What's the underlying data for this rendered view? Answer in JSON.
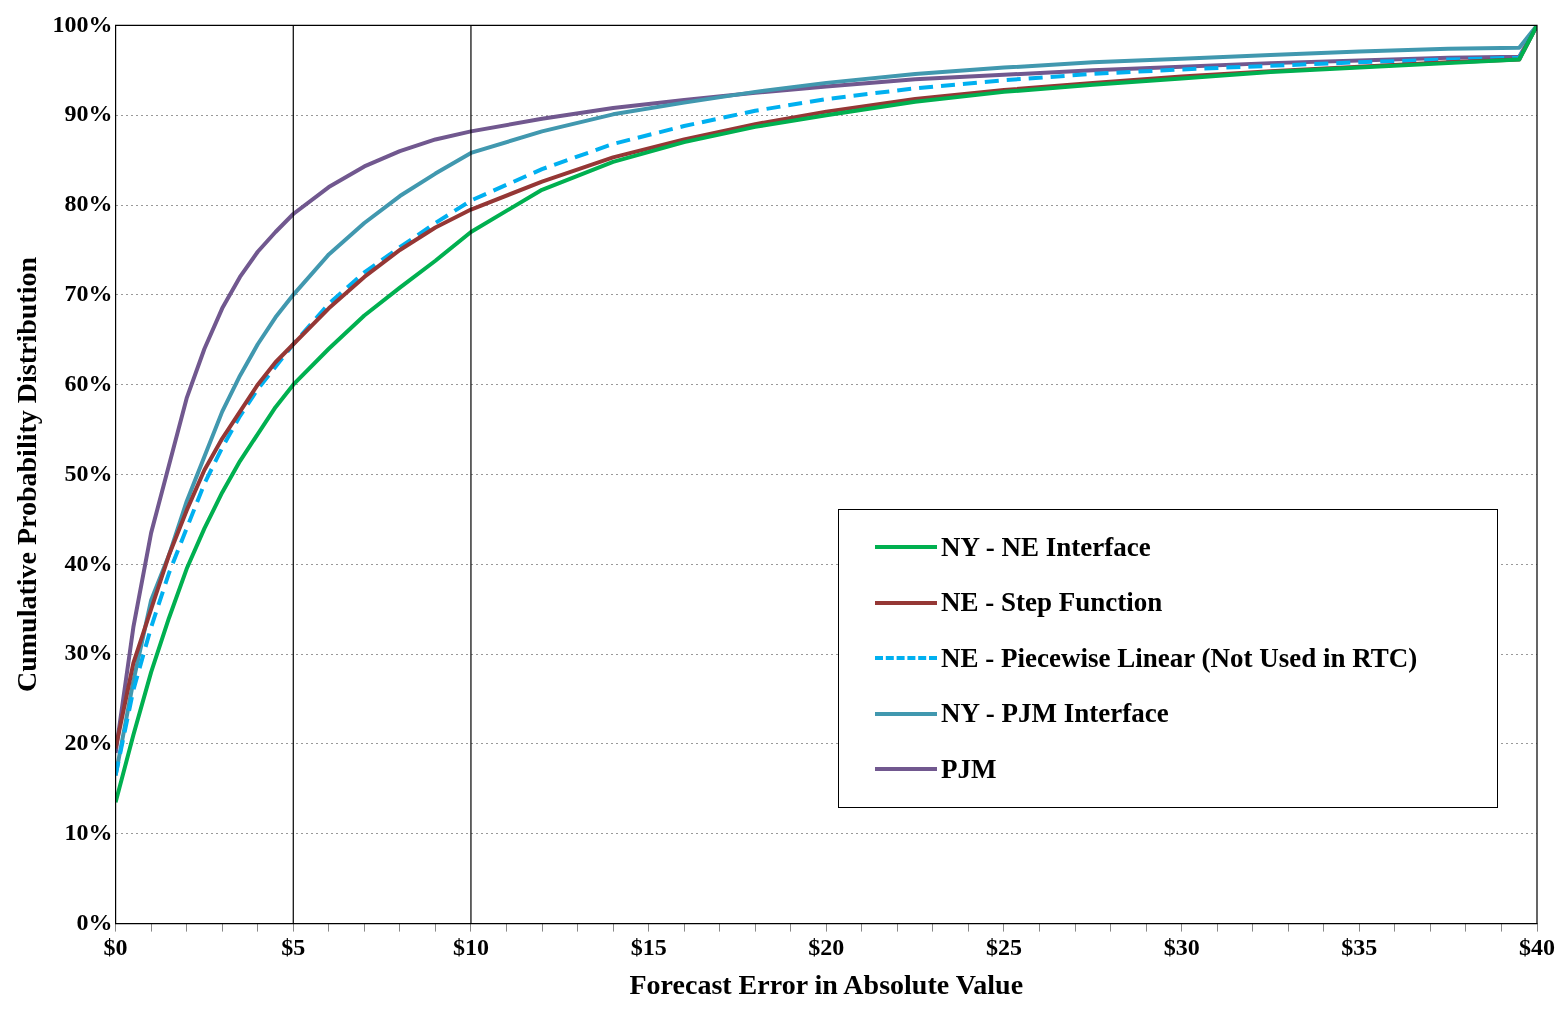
{
  "chart_data": {
    "type": "line",
    "xlabel": "Forecast Error in Absolute Value",
    "ylabel": "Cumulative Probability Distribution",
    "x": [
      0,
      0.5,
      1,
      1.5,
      2,
      2.5,
      3,
      3.5,
      4,
      4.5,
      5,
      6,
      7,
      8,
      9,
      10,
      12,
      14,
      16,
      18,
      20,
      22.5,
      25,
      27.5,
      30,
      32.5,
      35,
      37.5,
      39.5,
      40
    ],
    "series": [
      {
        "name": "NY - NE Interface",
        "color": "#00b050",
        "values": [
          13.5,
          21,
          28,
          34,
          39.5,
          44,
          48,
          51.5,
          54.5,
          57.5,
          60,
          64,
          67.7,
          70.8,
          73.8,
          77,
          81.7,
          84.8,
          87,
          88.7,
          90,
          91.5,
          92.6,
          93.4,
          94.1,
          94.8,
          95.3,
          95.8,
          96.2,
          100
        ]
      },
      {
        "name": "NE - Step Function",
        "color": "#953735",
        "values": [
          19.5,
          29,
          35,
          41,
          46,
          50.5,
          54,
          57,
          60,
          62.5,
          64.5,
          68.5,
          72,
          75,
          77.5,
          79.5,
          82.6,
          85.3,
          87.3,
          89,
          90.4,
          91.8,
          92.8,
          93.6,
          94.3,
          94.9,
          95.4,
          95.9,
          96.2,
          100
        ]
      },
      {
        "name": "NE - Piecewise Linear (Not Used in RTC)",
        "color": "#00b0f0",
        "line_style": "dashed",
        "values": [
          16.5,
          26,
          33,
          39,
          44,
          49,
          53,
          56.5,
          59.5,
          62,
          64.5,
          69,
          72.5,
          75.3,
          78,
          80.5,
          84,
          86.8,
          88.8,
          90.5,
          91.8,
          93,
          93.9,
          94.6,
          95.1,
          95.5,
          95.9,
          96.2,
          96.4,
          100
        ]
      },
      {
        "name": "NY - PJM Interface",
        "color": "#4198af",
        "values": [
          16.5,
          27,
          36,
          41,
          47,
          52,
          57,
          61,
          64.5,
          67.5,
          70,
          74.5,
          78,
          81,
          83.5,
          85.8,
          88.2,
          90.1,
          91.4,
          92.6,
          93.6,
          94.6,
          95.3,
          95.9,
          96.3,
          96.7,
          97.1,
          97.4,
          97.5,
          100
        ]
      },
      {
        "name": "PJM",
        "color": "#71588f",
        "values": [
          19,
          33,
          43.5,
          51,
          58.5,
          64,
          68.5,
          72,
          74.8,
          77,
          79,
          82,
          84.3,
          86,
          87.3,
          88.2,
          89.6,
          90.8,
          91.7,
          92.5,
          93.2,
          94,
          94.5,
          95,
          95.4,
          95.8,
          96.1,
          96.4,
          96.5,
          100
        ]
      }
    ],
    "xlim": [
      0,
      40
    ],
    "xticks": [
      {
        "value": 0,
        "label": "$0"
      },
      {
        "value": 1,
        "label": null
      },
      {
        "value": 2,
        "label": null
      },
      {
        "value": 3,
        "label": null
      },
      {
        "value": 4,
        "label": null
      },
      {
        "value": 5,
        "label": "$5"
      },
      {
        "value": 6,
        "label": null
      },
      {
        "value": 7,
        "label": null
      },
      {
        "value": 8,
        "label": null
      },
      {
        "value": 9,
        "label": null
      },
      {
        "value": 10,
        "label": "$10"
      },
      {
        "value": 11,
        "label": null
      },
      {
        "value": 12,
        "label": null
      },
      {
        "value": 13,
        "label": null
      },
      {
        "value": 14,
        "label": null
      },
      {
        "value": 15,
        "label": "$15"
      },
      {
        "value": 16,
        "label": null
      },
      {
        "value": 17,
        "label": null
      },
      {
        "value": 18,
        "label": null
      },
      {
        "value": 19,
        "label": null
      },
      {
        "value": 20,
        "label": "$20"
      },
      {
        "value": 21,
        "label": null
      },
      {
        "value": 22,
        "label": null
      },
      {
        "value": 23,
        "label": null
      },
      {
        "value": 24,
        "label": null
      },
      {
        "value": 25,
        "label": "$25"
      },
      {
        "value": 26,
        "label": null
      },
      {
        "value": 27,
        "label": null
      },
      {
        "value": 28,
        "label": null
      },
      {
        "value": 29,
        "label": null
      },
      {
        "value": 30,
        "label": "$30"
      },
      {
        "value": 31,
        "label": null
      },
      {
        "value": 32,
        "label": null
      },
      {
        "value": 33,
        "label": null
      },
      {
        "value": 34,
        "label": null
      },
      {
        "value": 35,
        "label": "$35"
      },
      {
        "value": 36,
        "label": null
      },
      {
        "value": 37,
        "label": null
      },
      {
        "value": 38,
        "label": null
      },
      {
        "value": 39,
        "label": null
      },
      {
        "value": 40,
        "label": "$40"
      }
    ],
    "ylim": [
      0,
      100
    ],
    "yticks": [
      {
        "value": 0,
        "label": "0%"
      },
      {
        "value": 10,
        "label": "10%"
      },
      {
        "value": 20,
        "label": "20%"
      },
      {
        "value": 30,
        "label": "30%"
      },
      {
        "value": 40,
        "label": "40%"
      },
      {
        "value": 50,
        "label": "50%"
      },
      {
        "value": 60,
        "label": "60%"
      },
      {
        "value": 70,
        "label": "70%"
      },
      {
        "value": 80,
        "label": "80%"
      },
      {
        "value": 90,
        "label": "90%"
      },
      {
        "value": 100,
        "label": "100%"
      }
    ],
    "ref_lines": [
      {
        "axis": "x",
        "value": 5,
        "color": "#000000"
      },
      {
        "axis": "x",
        "value": 10,
        "color": "#000000"
      }
    ],
    "grid": "y",
    "legend": "bottom right",
    "marker": "none",
    "line_style": "solid"
  }
}
